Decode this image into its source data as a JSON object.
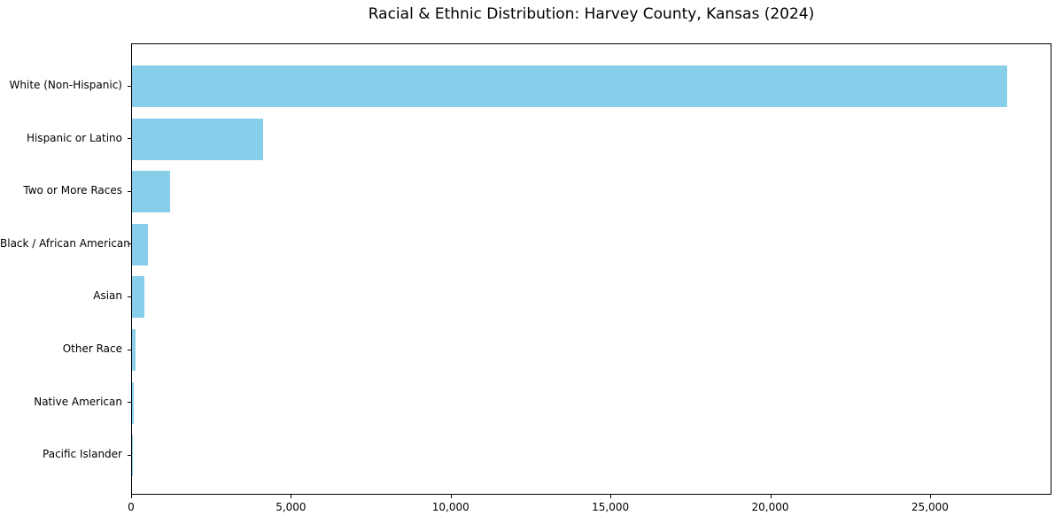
{
  "chart_data": {
    "type": "bar",
    "orientation": "horizontal",
    "title": "Racial & Ethnic Distribution: Harvey County, Kansas (2024)",
    "categories": [
      "White (Non-Hispanic)",
      "Hispanic or Latino",
      "Two or More Races",
      "Black / African American",
      "Asian",
      "Other Race",
      "Native American",
      "Pacific Islander"
    ],
    "values": [
      27400,
      4100,
      1200,
      500,
      390,
      100,
      60,
      10
    ],
    "xlabel": "",
    "ylabel": "",
    "xlim": [
      0,
      28800
    ],
    "x_ticks": [
      0,
      5000,
      10000,
      15000,
      20000,
      25000
    ],
    "x_tick_labels": [
      "0",
      "5,000",
      "10,000",
      "15,000",
      "20,000",
      "25,000"
    ],
    "bar_color": "#87CEEB",
    "axis_color": "#000000",
    "background_color": "#ffffff",
    "grid": false,
    "legend": null
  }
}
